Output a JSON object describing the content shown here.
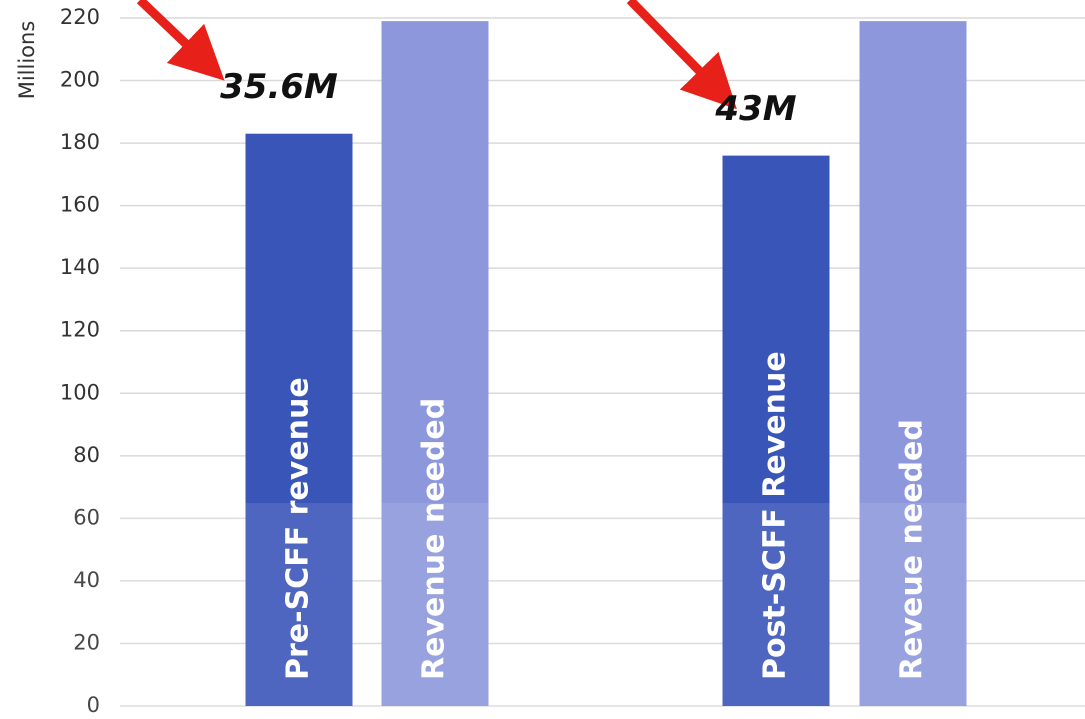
{
  "chart_data": {
    "type": "bar",
    "y_label": "Millions",
    "categories": [
      "Pre-SCFF revenue",
      "Revenue needed",
      "Post-SCFF Revenue",
      "Reveue needed"
    ],
    "values": [
      183,
      219,
      176,
      219
    ],
    "colors": [
      "#3a55b8",
      "#8d98dc",
      "#3a55b8",
      "#8d98dc"
    ],
    "ylim": [
      0,
      220
    ],
    "yticks": [
      0,
      20,
      40,
      60,
      80,
      100,
      120,
      140,
      160,
      180,
      200,
      220
    ],
    "grid": true,
    "annotations": [
      {
        "text": "35.6M",
        "bar": 0
      },
      {
        "text": "43M",
        "bar": 2
      }
    ]
  }
}
